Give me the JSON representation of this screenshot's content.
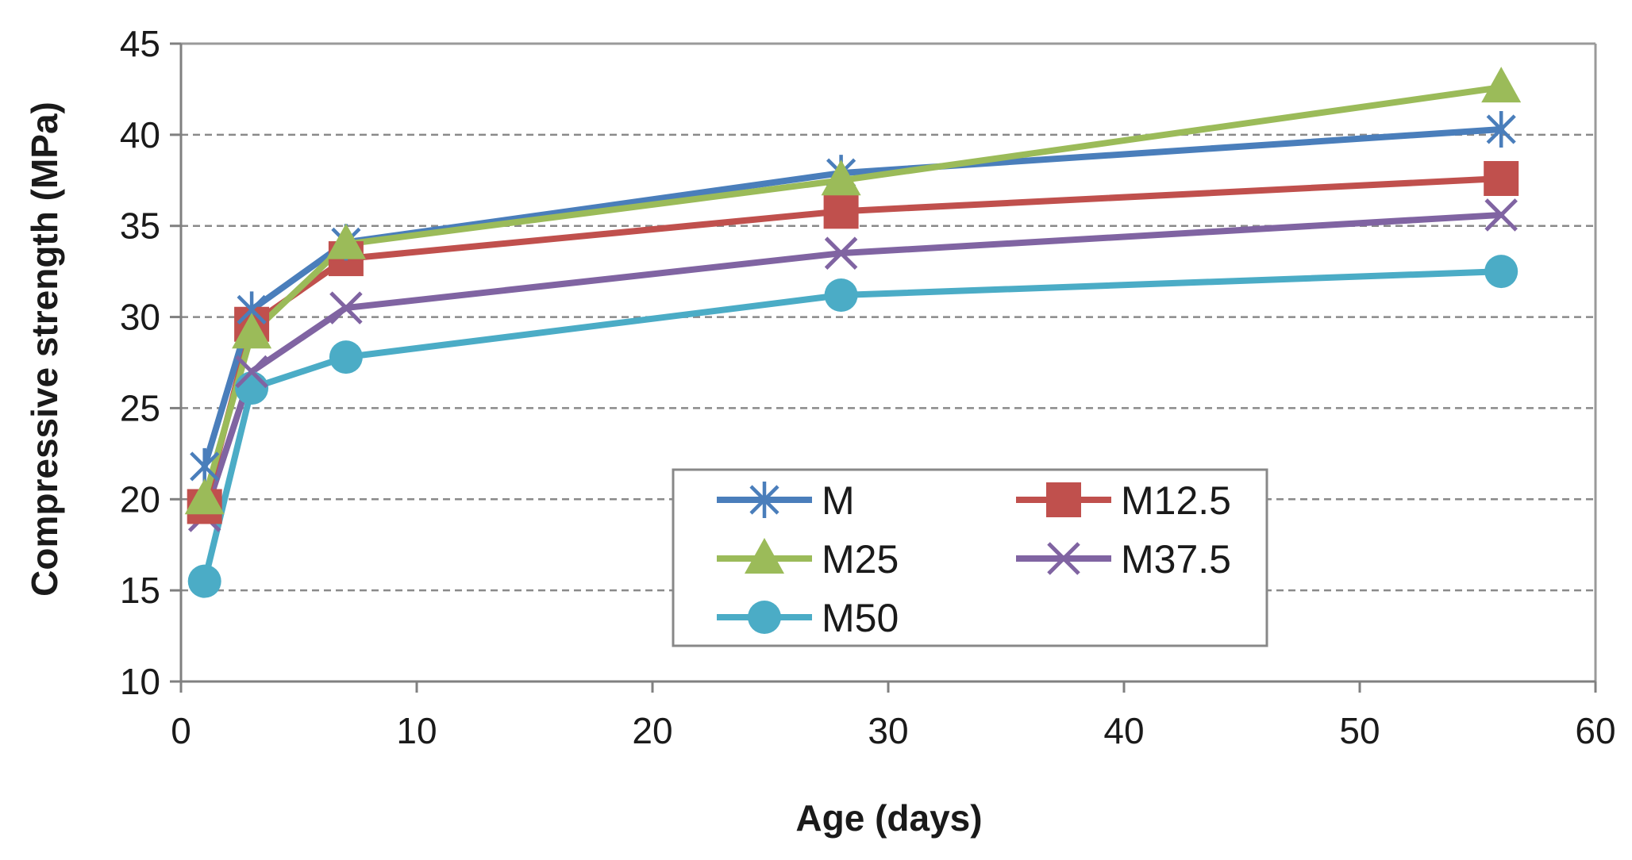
{
  "chart_data": {
    "type": "line",
    "title": "",
    "xlabel": "Age (days)",
    "ylabel": "Compressive strength (MPa)",
    "xlim": [
      0,
      60
    ],
    "ylim": [
      10,
      45
    ],
    "xticks": [
      0,
      10,
      20,
      30,
      40,
      50,
      60
    ],
    "yticks": [
      10,
      15,
      20,
      25,
      30,
      35,
      40,
      45
    ],
    "x_tick_labels": [
      "0",
      "10",
      "20",
      "30",
      "40",
      "50",
      "60"
    ],
    "y_tick_labels": [
      "10",
      "15",
      "20",
      "25",
      "30",
      "35",
      "40",
      "45"
    ],
    "grid": "horizontal dashed",
    "legend_position": "bottom-center",
    "x": [
      1,
      3,
      7,
      28,
      56
    ],
    "series": [
      {
        "name": "M",
        "marker": "asterisk",
        "color": "#4a7ebb",
        "values": [
          21.8,
          30.4,
          34.1,
          37.9,
          40.3
        ]
      },
      {
        "name": "M12.5",
        "marker": "square",
        "color": "#c0504d",
        "values": [
          19.6,
          29.6,
          33.2,
          35.8,
          37.6
        ]
      },
      {
        "name": "M25",
        "marker": "triangle",
        "color": "#9bbb59",
        "values": [
          20.0,
          29.1,
          34.0,
          37.5,
          42.6
        ]
      },
      {
        "name": "M37.5",
        "marker": "x",
        "color": "#8064a2",
        "values": [
          19.1,
          27.0,
          30.5,
          33.5,
          35.6
        ]
      },
      {
        "name": "M50",
        "marker": "circle",
        "color": "#4bacc6",
        "values": [
          15.5,
          26.1,
          27.8,
          31.2,
          32.5
        ]
      }
    ]
  }
}
